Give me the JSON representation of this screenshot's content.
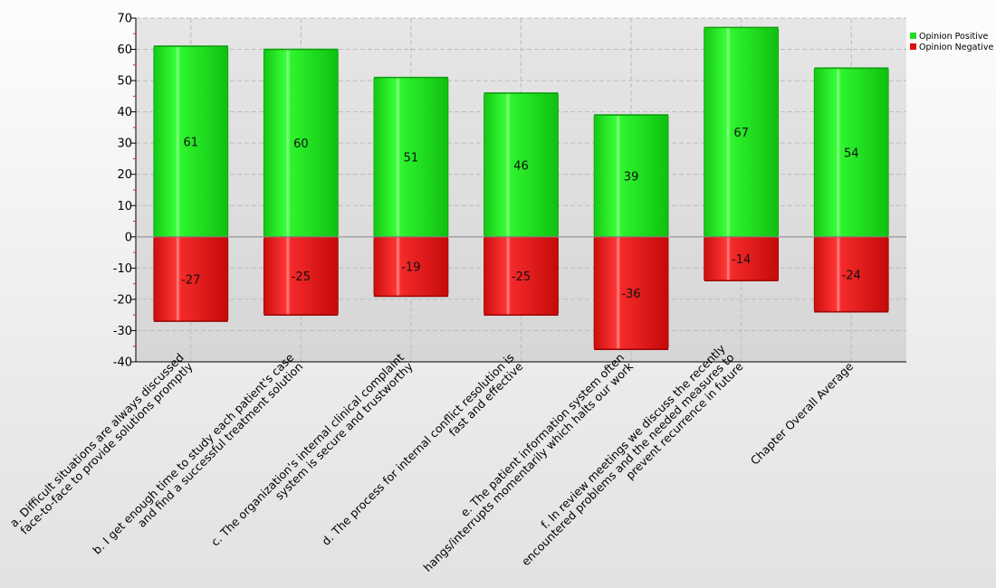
{
  "chart_data": {
    "type": "bar",
    "stacked": true,
    "categories": [
      [
        "a. Difficult situations are always discussed",
        "face-to-face to provide solutions promptly"
      ],
      [
        "b. I get enough time to study each patient's case",
        "and find a successful treatment solution"
      ],
      [
        "c. The organization's internal clinical complaint",
        "system is secure and trustworthy"
      ],
      [
        "d. The process for internal conflict resolution is",
        "fast and effective"
      ],
      [
        "e. The patient information system often",
        "hangs/interrupts momentarily which halts our work"
      ],
      [
        "f. In review meetings we discuss the recently",
        "encountered problems and the needed measures to",
        "prevent recurrence in future"
      ],
      [
        "Chapter Overall Average"
      ]
    ],
    "series": [
      {
        "name": "Opinion Positive",
        "color": "#22dd22",
        "values": [
          61,
          60,
          51,
          46,
          39,
          67,
          54
        ]
      },
      {
        "name": "Opinion Negative",
        "color": "#dd1111",
        "values": [
          -27,
          -25,
          -19,
          -25,
          -36,
          -14,
          -24
        ]
      }
    ],
    "ylim": [
      -40,
      70
    ],
    "yticks": [
      70,
      60,
      50,
      40,
      30,
      20,
      10,
      0,
      -10,
      -20,
      -30,
      -40
    ],
    "grid": true,
    "legend": "top-right"
  }
}
